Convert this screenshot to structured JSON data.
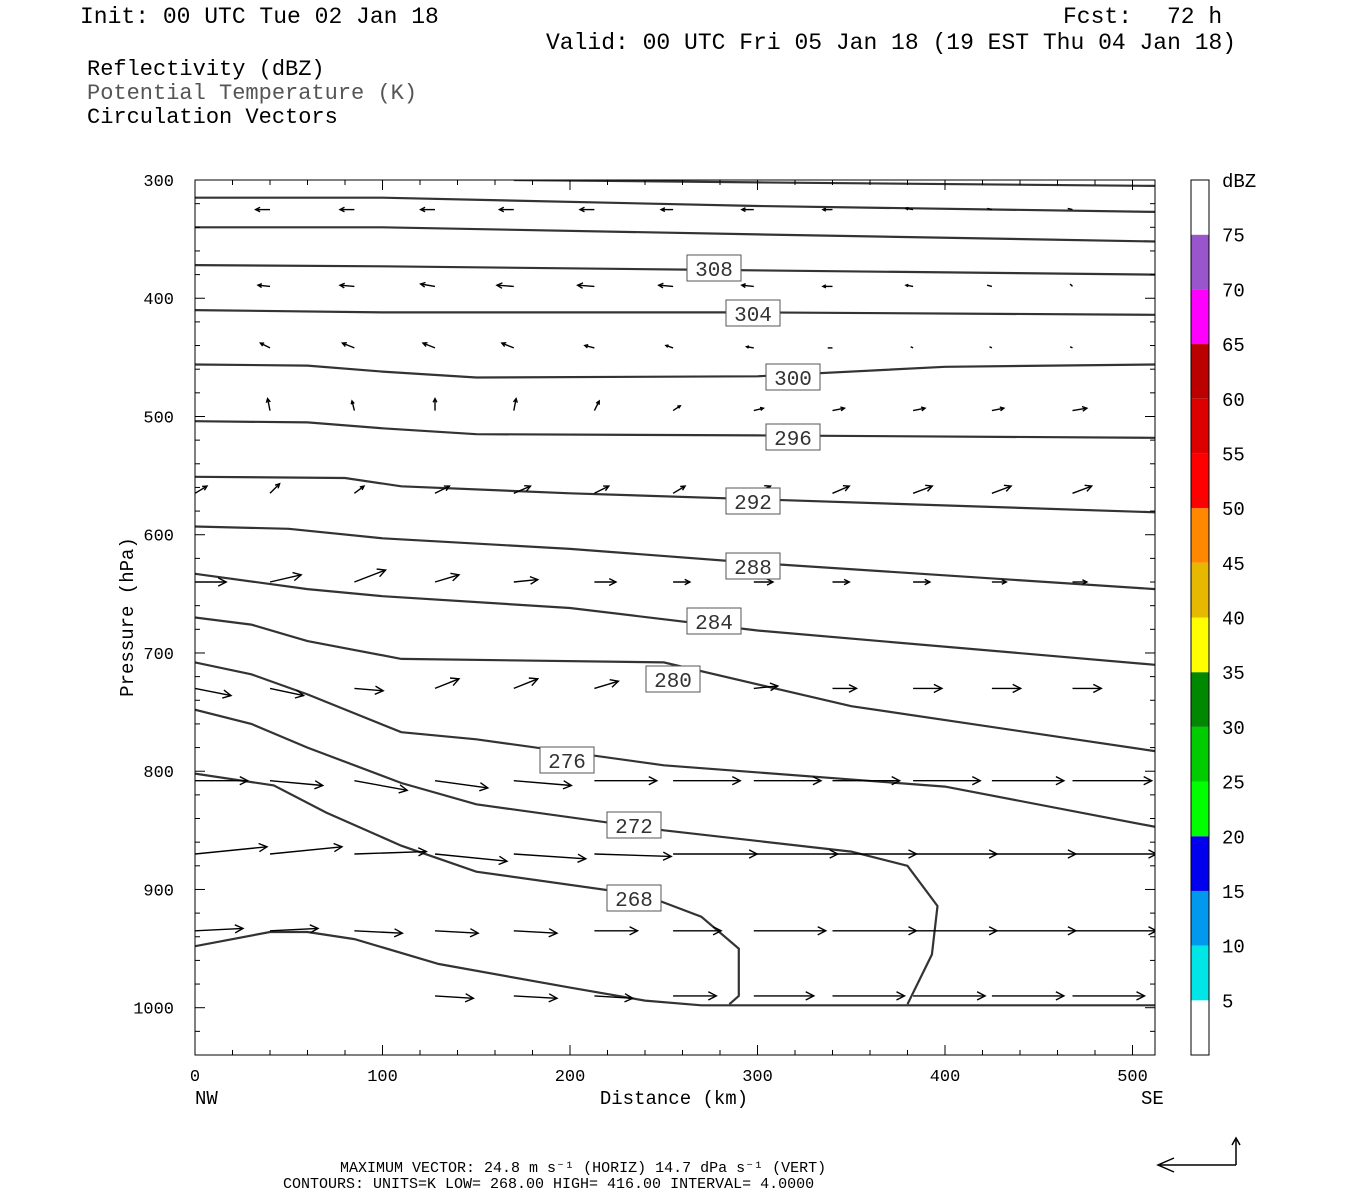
{
  "header": {
    "init": "Init: 00 UTC Tue 02 Jan 18",
    "fcst_label": "Fcst:",
    "fcst_value": "72 h",
    "valid": "Valid: 00 UTC Fri 05 Jan 18 (19 EST Thu 04 Jan 18)"
  },
  "fields": [
    "Reflectivity (dBZ)",
    "Potential Temperature (K)",
    "Circulation Vectors"
  ],
  "footer": {
    "max_vector": "MAXIMUM VECTOR:  24.8 m s⁻¹ (HORIZ)          14.7 dPa s⁻¹ (VERT)",
    "contours": "CONTOURS:  UNITS=K  LOW=   268.00       HIGH=  416.00       INTERVAL=     4.0000"
  },
  "colors": {
    "contour": "#333333",
    "colorbar": [
      "#00e5e5",
      "#0099ee",
      "#0000ee",
      "#00ff00",
      "#00cc00",
      "#008800",
      "#ffff00",
      "#e6b800",
      "#ff8800",
      "#ff0000",
      "#dd0000",
      "#bb0000",
      "#ff00ff",
      "#9955cc"
    ]
  },
  "chart_data": {
    "type": "cross-section",
    "xlabel": "Distance (km)",
    "ylabel": "Pressure (hPa)",
    "xlim": [
      0,
      512
    ],
    "ylim": [
      300,
      1040
    ],
    "y_scale": "linear-pressure-inverted",
    "x_ticks": [
      0,
      100,
      200,
      300,
      400,
      500
    ],
    "y_ticks": [
      300,
      400,
      500,
      600,
      700,
      800,
      900,
      1000
    ],
    "x_end_labels": {
      "left": "NW",
      "right": "SE"
    },
    "colorbar": {
      "unit": "dBZ",
      "levels": [
        5,
        10,
        15,
        20,
        25,
        30,
        35,
        40,
        45,
        50,
        55,
        60,
        65,
        70,
        75
      ]
    },
    "theta_contours": [
      {
        "label": "",
        "points": [
          [
            170,
            300
          ],
          [
            300,
            302
          ],
          [
            512,
            305
          ]
        ]
      },
      {
        "label": "",
        "points": [
          [
            0,
            315
          ],
          [
            100,
            315
          ],
          [
            300,
            322
          ],
          [
            512,
            327
          ]
        ]
      },
      {
        "label": "",
        "points": [
          [
            0,
            340
          ],
          [
            100,
            340
          ],
          [
            300,
            346
          ],
          [
            512,
            352
          ]
        ]
      },
      {
        "label": "308",
        "points": [
          [
            0,
            372
          ],
          [
            100,
            373
          ],
          [
            275,
            376
          ],
          [
            512,
            380
          ]
        ]
      },
      {
        "label": "304",
        "points": [
          [
            0,
            410
          ],
          [
            100,
            412
          ],
          [
            300,
            412
          ],
          [
            512,
            414
          ]
        ]
      },
      {
        "label": "300",
        "points": [
          [
            0,
            456
          ],
          [
            60,
            457
          ],
          [
            100,
            462
          ],
          [
            150,
            467
          ],
          [
            300,
            466
          ],
          [
            400,
            458
          ],
          [
            512,
            456
          ]
        ]
      },
      {
        "label": "296",
        "points": [
          [
            0,
            504
          ],
          [
            60,
            505
          ],
          [
            100,
            510
          ],
          [
            150,
            515
          ],
          [
            300,
            516
          ],
          [
            512,
            518
          ]
        ]
      },
      {
        "label": "292",
        "points": [
          [
            0,
            551
          ],
          [
            80,
            552
          ],
          [
            110,
            559
          ],
          [
            200,
            565
          ],
          [
            300,
            570
          ],
          [
            512,
            581
          ]
        ]
      },
      {
        "label": "288",
        "points": [
          [
            0,
            593
          ],
          [
            50,
            595
          ],
          [
            100,
            603
          ],
          [
            200,
            612
          ],
          [
            300,
            624
          ],
          [
            512,
            646
          ]
        ]
      },
      {
        "label": "284",
        "points": [
          [
            0,
            633
          ],
          [
            60,
            646
          ],
          [
            100,
            652
          ],
          [
            200,
            662
          ],
          [
            300,
            681
          ],
          [
            512,
            710
          ]
        ]
      },
      {
        "label": "280",
        "points": [
          [
            0,
            670
          ],
          [
            30,
            676
          ],
          [
            60,
            690
          ],
          [
            110,
            705
          ],
          [
            250,
            708
          ],
          [
            350,
            745
          ],
          [
            512,
            783
          ]
        ]
      },
      {
        "label": "276",
        "points": [
          [
            0,
            708
          ],
          [
            30,
            718
          ],
          [
            60,
            735
          ],
          [
            110,
            767
          ],
          [
            150,
            773
          ],
          [
            250,
            795
          ],
          [
            400,
            813
          ],
          [
            512,
            847
          ]
        ]
      },
      {
        "label": "272",
        "points": [
          [
            0,
            748
          ],
          [
            30,
            760
          ],
          [
            60,
            780
          ],
          [
            110,
            810
          ],
          [
            150,
            828
          ],
          [
            250,
            850
          ],
          [
            350,
            868
          ],
          [
            380,
            880
          ],
          [
            396,
            914
          ],
          [
            393,
            955
          ],
          [
            380,
            997
          ]
        ]
      },
      {
        "label": "268",
        "points": [
          [
            0,
            802
          ],
          [
            42,
            812
          ],
          [
            70,
            835
          ],
          [
            110,
            863
          ],
          [
            150,
            885
          ],
          [
            240,
            905
          ],
          [
            270,
            923
          ],
          [
            290,
            950
          ],
          [
            290,
            990
          ],
          [
            285,
            997
          ]
        ]
      },
      {
        "label": "",
        "points": [
          [
            0,
            948
          ],
          [
            40,
            936
          ],
          [
            60,
            936
          ],
          [
            85,
            942
          ],
          [
            130,
            963
          ],
          [
            200,
            983
          ],
          [
            240,
            994
          ],
          [
            270,
            998
          ],
          [
            512,
            998
          ]
        ]
      }
    ],
    "vector_rows": [
      {
        "p": 325,
        "x": [
          40,
          85,
          128,
          170,
          213,
          255,
          298,
          340,
          383,
          425,
          468
        ],
        "u": [
          -0.6,
          -0.6,
          -0.6,
          -0.6,
          -0.6,
          -0.5,
          -0.5,
          -0.4,
          -0.3,
          -0.2,
          -0.2
        ],
        "v": [
          0,
          0,
          0,
          0,
          0,
          0,
          0,
          0,
          0.05,
          0.05,
          0.05
        ]
      },
      {
        "p": 390,
        "x": [
          40,
          85,
          128,
          170,
          213,
          255,
          298,
          340,
          383,
          425,
          468
        ],
        "u": [
          -0.5,
          -0.6,
          -0.6,
          -0.7,
          -0.7,
          -0.6,
          -0.5,
          -0.4,
          -0.3,
          -0.2,
          -0.1
        ],
        "v": [
          0.05,
          0.05,
          0.1,
          0.05,
          0.05,
          0.05,
          0.05,
          0,
          0.05,
          0.05,
          0.1
        ]
      },
      {
        "p": 442,
        "x": [
          40,
          85,
          128,
          170,
          213,
          255,
          298,
          340,
          383,
          425,
          468
        ],
        "u": [
          -0.4,
          -0.5,
          -0.5,
          -0.5,
          -0.4,
          -0.3,
          -0.3,
          -0.2,
          -0.1,
          -0.1,
          -0.1
        ],
        "v": [
          0.2,
          0.2,
          0.2,
          0.2,
          0.1,
          0.1,
          0.05,
          0,
          0.05,
          0.05,
          0.05
        ]
      },
      {
        "p": 495,
        "x": [
          40,
          85,
          128,
          170,
          213,
          255,
          298,
          340,
          383,
          425,
          468
        ],
        "u": [
          -0.1,
          -0.1,
          0.0,
          0.1,
          0.2,
          0.3,
          0.4,
          0.5,
          0.5,
          0.5,
          0.6
        ],
        "v": [
          0.5,
          0.4,
          0.5,
          0.5,
          0.4,
          0.2,
          0.1,
          0.1,
          0.1,
          0.1,
          0.1
        ]
      },
      {
        "p": 565,
        "x": [
          0,
          40,
          85,
          128,
          170,
          213,
          255,
          298,
          340,
          383,
          425,
          468
        ],
        "u": [
          0.5,
          0.4,
          0.4,
          0.6,
          0.7,
          0.6,
          0.5,
          0.7,
          0.7,
          0.8,
          0.8,
          0.8
        ],
        "v": [
          0.3,
          0.4,
          0.3,
          0.3,
          0.3,
          0.3,
          0.3,
          0.3,
          0.3,
          0.3,
          0.3,
          0.3
        ]
      },
      {
        "p": 640,
        "x": [
          0,
          40,
          85,
          128,
          170,
          213,
          255,
          298,
          340,
          383,
          425,
          468
        ],
        "u": [
          1.3,
          1.3,
          1.3,
          1.0,
          1.0,
          0.9,
          0.7,
          0.8,
          0.7,
          0.7,
          0.6,
          0.6
        ],
        "v": [
          0,
          0.3,
          0.5,
          0.3,
          0.1,
          0,
          0,
          0,
          0,
          0,
          0,
          0
        ]
      },
      {
        "p": 730,
        "x": [
          0,
          40,
          85,
          128,
          170,
          213,
          255,
          298,
          340,
          383,
          425,
          468
        ],
        "u": [
          1.5,
          1.4,
          1.2,
          1.0,
          1.0,
          1.0,
          1.0,
          1.0,
          1.0,
          1.2,
          1.2,
          1.2
        ],
        "v": [
          -0.3,
          -0.3,
          -0.1,
          0.4,
          0.4,
          0.3,
          0.2,
          0.1,
          0,
          0,
          0,
          0
        ]
      },
      {
        "p": 808,
        "x": [
          0,
          40,
          85,
          128,
          170,
          213,
          255,
          298,
          340,
          383,
          425,
          468
        ],
        "u": [
          2.2,
          2.2,
          2.2,
          2.2,
          2.4,
          2.6,
          2.8,
          2.8,
          2.8,
          2.8,
          3.0,
          3.3
        ],
        "v": [
          0,
          -0.2,
          -0.4,
          -0.3,
          -0.2,
          0,
          0,
          0,
          0,
          0,
          0,
          0
        ]
      },
      {
        "p": 870,
        "x": [
          0,
          40,
          85,
          128,
          170,
          213,
          255,
          298,
          340,
          383,
          425,
          468
        ],
        "u": [
          3.0,
          3.0,
          3.0,
          3.0,
          3.0,
          3.2,
          3.5,
          3.5,
          3.5,
          3.5,
          3.5,
          3.5
        ],
        "v": [
          0.3,
          0.3,
          0.1,
          -0.3,
          -0.2,
          -0.1,
          0,
          0,
          0,
          0,
          0,
          0
        ]
      },
      {
        "p": 935,
        "x": [
          0,
          40,
          85,
          128,
          170,
          213,
          255,
          298,
          340,
          383,
          425,
          468
        ],
        "u": [
          2.0,
          2.0,
          2.0,
          1.8,
          1.8,
          1.8,
          2.0,
          3.0,
          3.5,
          3.5,
          3.5,
          3.5
        ],
        "v": [
          0.1,
          0.1,
          -0.1,
          -0.1,
          -0.1,
          0,
          0,
          0,
          0,
          0,
          0,
          0
        ]
      },
      {
        "p": 990,
        "x": [
          128,
          170,
          213,
          255,
          298,
          340,
          383,
          425,
          468
        ],
        "u": [
          1.6,
          1.8,
          1.6,
          1.8,
          2.5,
          3.0,
          3.0,
          3.0,
          3.0
        ],
        "v": [
          -0.1,
          -0.1,
          -0.1,
          0,
          0,
          0,
          0,
          0,
          0
        ]
      }
    ]
  }
}
